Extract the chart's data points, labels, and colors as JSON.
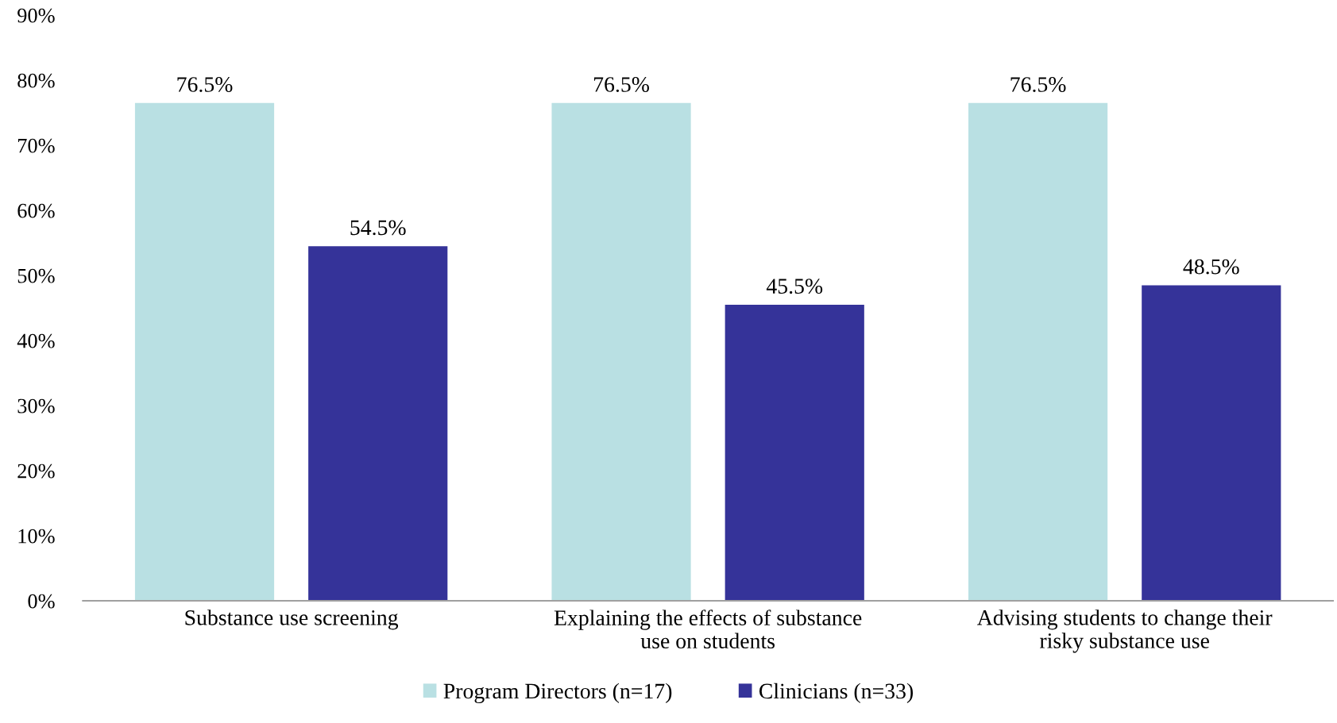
{
  "chart_data": {
    "type": "bar",
    "categories": [
      "Substance use screening",
      "Explaining the effects of substance\nuse on students",
      "Advising students to change their\nrisky substance use"
    ],
    "series": [
      {
        "name": "Program Directors (n=17)",
        "color": "#b9e0e3",
        "values": [
          76.5,
          76.5,
          76.5
        ],
        "value_labels": [
          "76.5%",
          "76.5%",
          "76.5%"
        ]
      },
      {
        "name": "Clinicians (n=33)",
        "color": "#353399",
        "values": [
          54.5,
          45.5,
          48.5
        ],
        "value_labels": [
          "54.5%",
          "45.5%",
          "48.5%"
        ]
      }
    ],
    "ylim": [
      0,
      90
    ],
    "yticks": [
      {
        "value": 0,
        "label": "0%"
      },
      {
        "value": 10,
        "label": "10%"
      },
      {
        "value": 20,
        "label": "20%"
      },
      {
        "value": 30,
        "label": "30%"
      },
      {
        "value": 40,
        "label": "40%"
      },
      {
        "value": 50,
        "label": "50%"
      },
      {
        "value": 60,
        "label": "60%"
      },
      {
        "value": 70,
        "label": "70%"
      },
      {
        "value": 80,
        "label": "80%"
      },
      {
        "value": 90,
        "label": "90%"
      }
    ],
    "grid": false,
    "legend": "bottom"
  }
}
